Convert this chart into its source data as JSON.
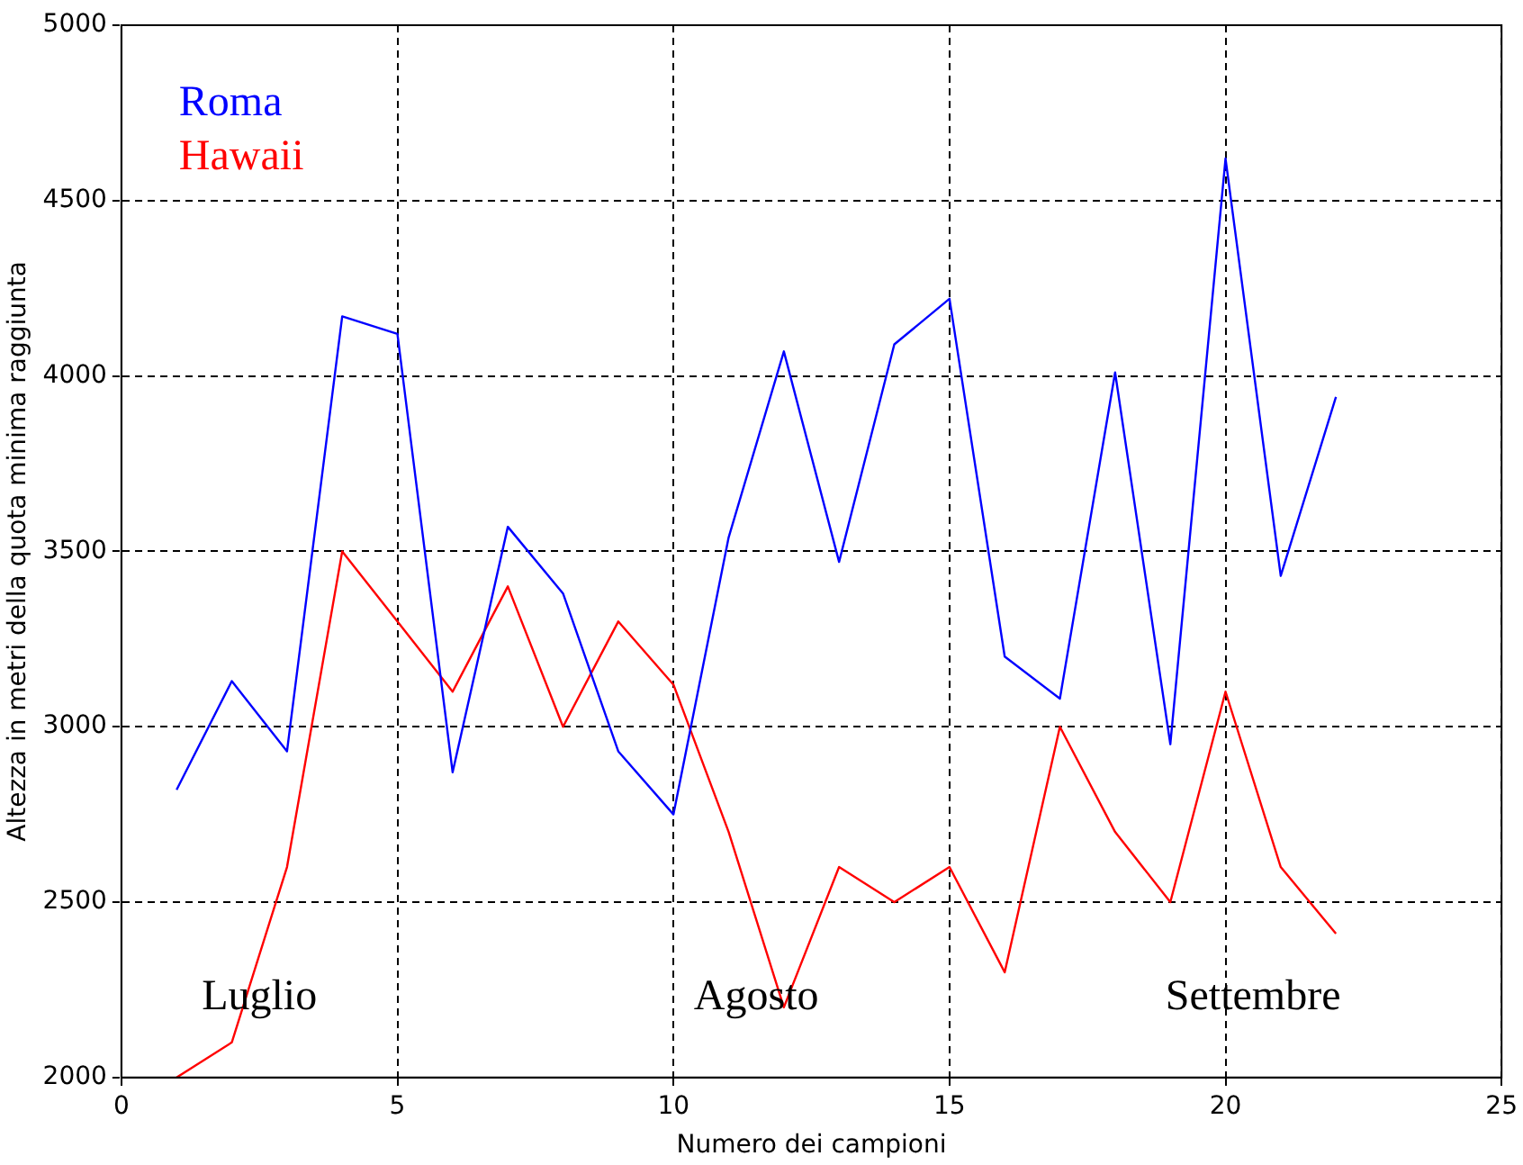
{
  "chart_data": {
    "type": "line",
    "xlabel": "Numero dei campioni",
    "ylabel": "Altezza in metri della quota minima raggiunta",
    "x": [
      1,
      2,
      3,
      4,
      5,
      6,
      7,
      8,
      9,
      10,
      11,
      12,
      13,
      14,
      15,
      16,
      17,
      18,
      19,
      20,
      21,
      22
    ],
    "series": [
      {
        "name": "Roma",
        "color": "#0000ff",
        "values": [
          2820,
          3130,
          2930,
          4170,
          4120,
          2870,
          3570,
          3380,
          2930,
          2750,
          3540,
          4070,
          3470,
          4090,
          4220,
          3200,
          3080,
          4010,
          2950,
          4620,
          3430,
          3940
        ]
      },
      {
        "name": "Hawaii",
        "color": "#ff0000",
        "values": [
          2000,
          2100,
          2600,
          3500,
          3300,
          3100,
          3400,
          3000,
          3300,
          3120,
          2700,
          2200,
          2600,
          2500,
          2600,
          2300,
          3000,
          2700,
          2500,
          3100,
          2600,
          2410
        ]
      }
    ],
    "xlim": [
      0,
      25
    ],
    "xticks": [
      0,
      5,
      10,
      15,
      20,
      25
    ],
    "ylim": [
      2000,
      5000
    ],
    "yticks": [
      2000,
      2500,
      3000,
      3500,
      4000,
      4500,
      5000
    ],
    "grid": true,
    "legend": "top left",
    "marker": "none",
    "line_style": "solid",
    "annotations": [
      "Luglio",
      "Agosto",
      "Settembre"
    ]
  }
}
